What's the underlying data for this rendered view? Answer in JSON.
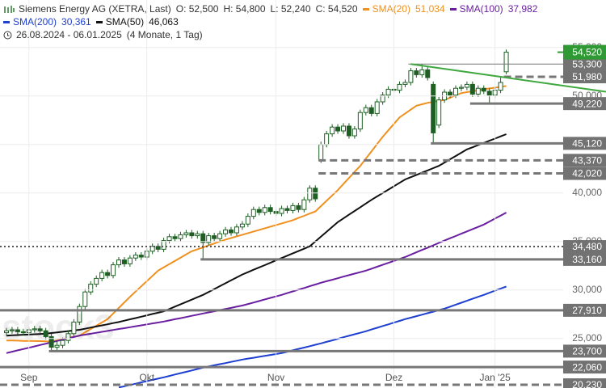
{
  "header": {
    "ohlc_labels": [
      "O: 52,500",
      "H: 54,800",
      "L: 52,240",
      "C: 54,520"
    ],
    "range": "26.08.2024 - 06.01.2025",
    "duration": "(4 Monate, 1 Tag)"
  },
  "chart_data": {
    "type": "candlestick",
    "title": "Siemens Energy AG (XETRA, Last)",
    "watermark": "stock3",
    "categories": [
      null,
      null,
      null,
      null,
      "Sep",
      null,
      null,
      null,
      null,
      null,
      null,
      null,
      null,
      null,
      null,
      null,
      null,
      null,
      null,
      null,
      null,
      null,
      null,
      null,
      null,
      "Okt",
      null,
      null,
      null,
      null,
      null,
      null,
      null,
      null,
      null,
      null,
      null,
      null,
      null,
      null,
      null,
      null,
      null,
      null,
      null,
      null,
      null,
      null,
      "Nov",
      null,
      null,
      null,
      null,
      null,
      null,
      null,
      null,
      null,
      null,
      null,
      null,
      null,
      null,
      null,
      null,
      null,
      null,
      null,
      null,
      "Dez",
      null,
      null,
      null,
      null,
      null,
      null,
      null,
      null,
      null,
      null,
      null,
      null,
      null,
      null,
      null,
      null,
      null,
      "Jan '25",
      null,
      null
    ],
    "open": [
      25600,
      25800,
      25900,
      25700,
      25600,
      25900,
      26000,
      25800,
      25200,
      24100,
      24300,
      24800,
      25500,
      26700,
      28300,
      29800,
      30600,
      31200,
      31800,
      31500,
      32600,
      33100,
      32700,
      33300,
      33600,
      33400,
      34000,
      34500,
      34200,
      35100,
      35500,
      35300,
      35700,
      35900,
      35600,
      35800,
      34900,
      35600,
      35300,
      35800,
      36200,
      35900,
      36500,
      36800,
      37600,
      38300,
      38000,
      38500,
      38100,
      37900,
      38400,
      38200,
      38700,
      38300,
      39300,
      40500,
      43400,
      45000,
      46100,
      46800,
      46400,
      46900,
      45900,
      46600,
      48300,
      48800,
      48200,
      49400,
      50100,
      50700,
      50600,
      51200,
      51400,
      52600,
      52200,
      52700,
      51200,
      47000,
      49600,
      50400,
      50100,
      50800,
      50900,
      51200,
      50200,
      50800,
      50500,
      50100,
      50600,
      52500
    ],
    "high": [
      26100,
      26200,
      26200,
      26000,
      26200,
      26300,
      26300,
      26100,
      25500,
      24700,
      25100,
      25800,
      27000,
      28600,
      30100,
      30900,
      31500,
      32100,
      32100,
      32900,
      33400,
      33400,
      33600,
      33900,
      33900,
      34300,
      34800,
      34800,
      35400,
      35800,
      35800,
      36000,
      36200,
      36200,
      36100,
      36100,
      35900,
      35900,
      36100,
      36500,
      36500,
      36800,
      37100,
      37900,
      38600,
      38600,
      38800,
      38800,
      38400,
      38700,
      38700,
      39000,
      39000,
      39600,
      40800,
      40800,
      45300,
      46400,
      47100,
      47100,
      47200,
      47200,
      46900,
      48600,
      49100,
      49100,
      49700,
      50400,
      51000,
      51000,
      51500,
      51700,
      52900,
      52900,
      53300,
      53000,
      51500,
      49900,
      50700,
      50700,
      51100,
      51200,
      51500,
      51500,
      51100,
      51100,
      50800,
      50900,
      51980,
      54800
    ],
    "low": [
      25300,
      25500,
      25400,
      25300,
      25300,
      25600,
      25500,
      24900,
      23700,
      23800,
      24000,
      24500,
      25200,
      26400,
      28000,
      29500,
      30300,
      30900,
      31200,
      31200,
      32300,
      32400,
      32400,
      33000,
      33100,
      33100,
      33700,
      33900,
      33900,
      34800,
      35000,
      35000,
      35400,
      35300,
      35300,
      33160,
      34600,
      35000,
      35000,
      35500,
      35600,
      35600,
      36200,
      36500,
      37300,
      37700,
      37700,
      37800,
      37600,
      37600,
      37900,
      37900,
      38000,
      38000,
      39000,
      39100,
      43100,
      44700,
      45800,
      46100,
      46100,
      45600,
      45600,
      46300,
      48000,
      47900,
      47900,
      49100,
      49800,
      50300,
      50300,
      50900,
      51100,
      51900,
      51900,
      51600,
      45120,
      46700,
      49300,
      49800,
      49800,
      50500,
      50600,
      49900,
      49900,
      50200,
      49220,
      49800,
      50300,
      52240
    ],
    "close": [
      25800,
      25900,
      25700,
      25600,
      25900,
      26000,
      25800,
      25200,
      24100,
      24300,
      24800,
      25500,
      26700,
      28300,
      29800,
      30600,
      31200,
      31800,
      31500,
      32600,
      33100,
      32700,
      33300,
      33600,
      33400,
      34000,
      34500,
      34200,
      35100,
      35500,
      35300,
      35700,
      35900,
      35600,
      35800,
      34900,
      35600,
      35300,
      35800,
      36200,
      35900,
      36500,
      36800,
      37600,
      38300,
      38000,
      38500,
      38100,
      37900,
      38400,
      38200,
      38700,
      38300,
      39300,
      40500,
      39400,
      45000,
      46100,
      46800,
      46400,
      46900,
      45900,
      46600,
      48300,
      48800,
      48200,
      49400,
      50100,
      50700,
      50600,
      51200,
      51400,
      52600,
      52200,
      52700,
      51900,
      46200,
      49600,
      50400,
      50100,
      50800,
      50900,
      51200,
      50200,
      50800,
      50500,
      50100,
      50600,
      51400,
      54520
    ],
    "candle_colors": {
      "up": "#ffffff",
      "down": "#1f5f24",
      "edge": "#1f5f24"
    },
    "series": [
      {
        "name": "SMA(20)",
        "color": "#f0901e",
        "legend_value": "51,034",
        "values": [
          24800,
          24790,
          24780,
          24760,
          24750,
          24740,
          24730,
          24710,
          24700,
          24820,
          24940,
          25060,
          25180,
          25300,
          25640,
          25980,
          26320,
          26660,
          27000,
          27580,
          28150,
          28730,
          29300,
          29840,
          30380,
          30920,
          31460,
          32000,
          32330,
          32670,
          33000,
          33330,
          33670,
          34000,
          34200,
          34400,
          34600,
          34800,
          35000,
          35200,
          35370,
          35530,
          35700,
          35870,
          36030,
          36200,
          36370,
          36530,
          36700,
          36870,
          37030,
          37200,
          37430,
          37650,
          37880,
          38100,
          38650,
          39200,
          39750,
          40300,
          40930,
          41550,
          42180,
          42800,
          43550,
          44300,
          45050,
          45800,
          46470,
          47130,
          47800,
          48200,
          48600,
          49000,
          49150,
          49300,
          49400,
          49500,
          49600,
          49830,
          50070,
          50300,
          50400,
          50500,
          50600,
          50700,
          50780,
          50860,
          50950,
          51034
        ]
      },
      {
        "name": "SMA(100)",
        "color": "#6a1fa0",
        "legend_value": "37,982",
        "values": [
          23500,
          23640,
          23780,
          23920,
          24050,
          24190,
          24330,
          24470,
          24610,
          24750,
          24880,
          25020,
          25160,
          25300,
          25400,
          25490,
          25590,
          25690,
          25780,
          25880,
          25980,
          26070,
          26170,
          26270,
          26360,
          26460,
          26560,
          26650,
          26750,
          26870,
          26990,
          27100,
          27220,
          27340,
          27460,
          27580,
          27690,
          27810,
          27930,
          28050,
          28160,
          28280,
          28400,
          28560,
          28710,
          28870,
          29030,
          29190,
          29340,
          29500,
          29680,
          29860,
          30040,
          30210,
          30390,
          30570,
          30750,
          30910,
          31060,
          31220,
          31380,
          31530,
          31690,
          31840,
          32000,
          32200,
          32400,
          32600,
          32800,
          33000,
          33200,
          33400,
          33640,
          33890,
          34130,
          34370,
          34610,
          34860,
          35100,
          35340,
          35570,
          35810,
          36040,
          36280,
          36510,
          36750,
          37060,
          37370,
          37670,
          37982
        ]
      },
      {
        "name": "SMA(200)",
        "color": "#1e3fd0",
        "legend_value": "30,361",
        "values": [
          null,
          null,
          null,
          null,
          null,
          null,
          null,
          null,
          null,
          null,
          null,
          null,
          null,
          null,
          null,
          null,
          null,
          null,
          null,
          null,
          19950,
          20080,
          20210,
          20340,
          20480,
          20610,
          20740,
          20870,
          21000,
          21140,
          21290,
          21430,
          21570,
          21710,
          21860,
          22000,
          22120,
          22240,
          22360,
          22470,
          22590,
          22710,
          22830,
          22930,
          23020,
          23120,
          23210,
          23310,
          23400,
          23500,
          23640,
          23790,
          23930,
          24070,
          24210,
          24360,
          24500,
          24660,
          24810,
          24970,
          25130,
          25280,
          25440,
          25590,
          25750,
          25930,
          26110,
          26290,
          26460,
          26640,
          26820,
          27000,
          27150,
          27310,
          27460,
          27620,
          27770,
          27930,
          28080,
          28280,
          28490,
          28690,
          28890,
          29100,
          29300,
          29500,
          29720,
          29930,
          30150,
          30361
        ]
      },
      {
        "name": "SMA(50)",
        "color": "#111111",
        "legend_value": "46,063",
        "values": [
          25300,
          25330,
          25360,
          25390,
          25410,
          25440,
          25470,
          25500,
          25570,
          25630,
          25700,
          25770,
          25830,
          25900,
          26010,
          26130,
          26240,
          26360,
          26470,
          26590,
          26700,
          26840,
          26980,
          27110,
          27250,
          27390,
          27530,
          27660,
          27800,
          28040,
          28290,
          28530,
          28770,
          29010,
          29260,
          29500,
          29800,
          30100,
          30400,
          30700,
          31000,
          31300,
          31600,
          31840,
          32090,
          32330,
          32570,
          32810,
          33060,
          33300,
          33540,
          33780,
          34020,
          34260,
          34500,
          35000,
          35500,
          36000,
          36500,
          37000,
          37380,
          37770,
          38150,
          38530,
          38920,
          39300,
          39650,
          40000,
          40350,
          40700,
          41050,
          41400,
          41630,
          41870,
          42100,
          42330,
          42570,
          42800,
          43140,
          43480,
          43820,
          44160,
          44500,
          44720,
          44950,
          45170,
          45390,
          45610,
          45840,
          46063
        ]
      }
    ],
    "levels": [
      {
        "value": 53300,
        "label": "53,300",
        "style": "thin",
        "start": 72
      },
      {
        "value": 51980,
        "label": "51,980",
        "style": "dashed",
        "start": 89
      },
      {
        "value": 49220,
        "label": "49,220",
        "style": "solid",
        "start": 83
      },
      {
        "value": 45120,
        "label": "45,120",
        "style": "solid",
        "start": 76
      },
      {
        "value": 43370,
        "label": "43,370",
        "style": "dashed",
        "start": 56
      },
      {
        "value": 42020,
        "label": "42,020",
        "style": "dashed",
        "start": 56
      },
      {
        "value": 34480,
        "label": "34,480",
        "style": "dotted",
        "start": 0
      },
      {
        "value": 33160,
        "label": "33,160",
        "style": "solid",
        "start": 35
      },
      {
        "value": 27910,
        "label": "27,910",
        "style": "solid",
        "start": 0
      },
      {
        "value": 23700,
        "label": "23,700",
        "style": "solid",
        "start": 8
      },
      {
        "value": 22060,
        "label": "22,060",
        "style": "solid",
        "start": 0
      },
      {
        "value": 20230,
        "label": "20,230",
        "style": "dashed",
        "start": 0
      }
    ],
    "trendline": {
      "color": "#3fa83f",
      "x": [
        72,
        89
      ],
      "values": [
        53300,
        51900
      ]
    },
    "last_label": {
      "value": 54520,
      "label": "54,520",
      "color": "#2f9a34"
    },
    "ylim": [
      19900,
      59900
    ],
    "yticks": [
      {
        "value": 25000,
        "label": "25,000"
      },
      {
        "value": 30000,
        "label": "30,000"
      },
      {
        "value": 35000,
        "label": "35,000"
      },
      {
        "value": 40000,
        "label": "40,000"
      },
      {
        "value": 45000,
        "label": "45,000"
      },
      {
        "value": 50000,
        "label": "50,000"
      },
      {
        "value": 55000,
        "label": "55,000"
      }
    ],
    "grid": true
  }
}
